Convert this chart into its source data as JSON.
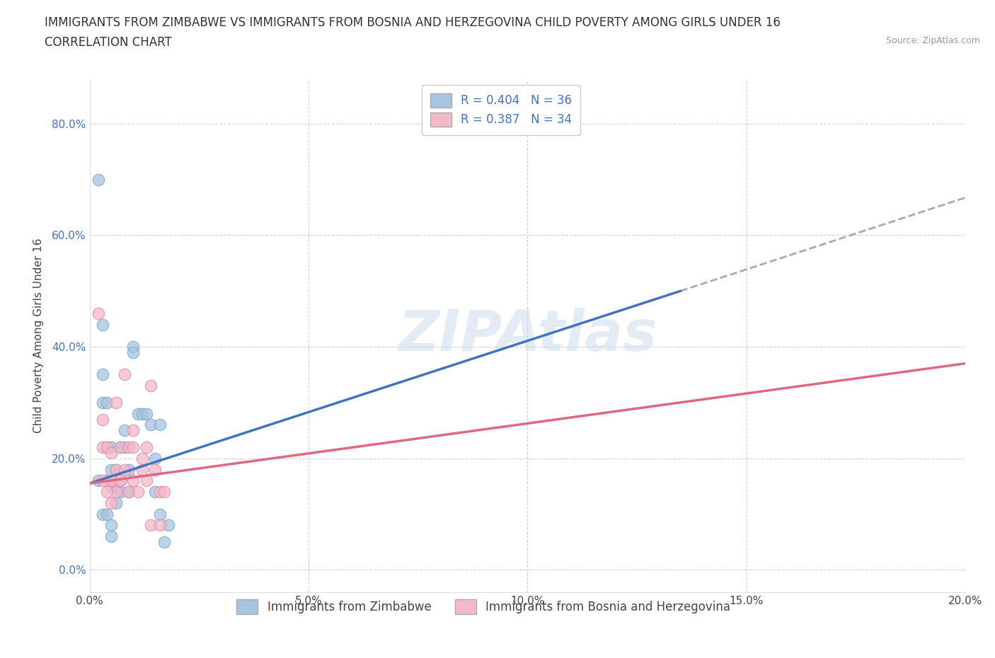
{
  "title_line1": "IMMIGRANTS FROM ZIMBABWE VS IMMIGRANTS FROM BOSNIA AND HERZEGOVINA CHILD POVERTY AMONG GIRLS UNDER 16",
  "title_line2": "CORRELATION CHART",
  "source": "Source: ZipAtlas.com",
  "ylabel": "Child Poverty Among Girls Under 16",
  "xlim": [
    0.0,
    0.2
  ],
  "ylim": [
    -0.04,
    0.88
  ],
  "xticks": [
    0.0,
    0.05,
    0.1,
    0.15,
    0.2
  ],
  "xtick_labels": [
    "0.0%",
    "5.0%",
    "10.0%",
    "15.0%",
    "20.0%"
  ],
  "yticks": [
    0.0,
    0.2,
    0.4,
    0.6,
    0.8
  ],
  "ytick_labels": [
    "0.0%",
    "20.0%",
    "40.0%",
    "60.0%",
    "80.0%"
  ],
  "series_zimbabwe": {
    "label": "Immigrants from Zimbabwe",
    "color": "#a8c4e0",
    "edge_color": "#7aadd0",
    "line_color": "#4472c4",
    "R": 0.404,
    "N": 36,
    "x": [
      0.002,
      0.003,
      0.003,
      0.003,
      0.004,
      0.004,
      0.005,
      0.005,
      0.005,
      0.006,
      0.006,
      0.007,
      0.007,
      0.007,
      0.008,
      0.008,
      0.009,
      0.009,
      0.01,
      0.01,
      0.011,
      0.012,
      0.013,
      0.014,
      0.015,
      0.015,
      0.016,
      0.016,
      0.017,
      0.018,
      0.002,
      0.003,
      0.004,
      0.005,
      0.006,
      0.005
    ],
    "y": [
      0.7,
      0.44,
      0.35,
      0.3,
      0.3,
      0.22,
      0.18,
      0.15,
      0.22,
      0.18,
      0.15,
      0.22,
      0.16,
      0.14,
      0.25,
      0.22,
      0.14,
      0.18,
      0.4,
      0.39,
      0.28,
      0.28,
      0.28,
      0.26,
      0.14,
      0.2,
      0.26,
      0.1,
      0.05,
      0.08,
      0.16,
      0.1,
      0.1,
      0.08,
      0.12,
      0.06
    ],
    "trend_x": [
      0.0,
      0.135
    ],
    "trend_y": [
      0.155,
      0.5
    ]
  },
  "series_bosnia": {
    "label": "Immigrants from Bosnia and Herzegovina",
    "color": "#f4b8c8",
    "edge_color": "#e090a8",
    "line_color": "#e06880",
    "R": 0.387,
    "N": 34,
    "x": [
      0.002,
      0.003,
      0.003,
      0.004,
      0.004,
      0.005,
      0.005,
      0.006,
      0.006,
      0.007,
      0.007,
      0.008,
      0.009,
      0.009,
      0.01,
      0.01,
      0.011,
      0.012,
      0.013,
      0.013,
      0.014,
      0.015,
      0.016,
      0.016,
      0.017,
      0.003,
      0.004,
      0.005,
      0.006,
      0.007,
      0.008,
      0.01,
      0.012,
      0.014
    ],
    "y": [
      0.46,
      0.27,
      0.22,
      0.22,
      0.16,
      0.21,
      0.16,
      0.14,
      0.18,
      0.22,
      0.16,
      0.18,
      0.22,
      0.14,
      0.22,
      0.16,
      0.14,
      0.18,
      0.16,
      0.22,
      0.08,
      0.18,
      0.14,
      0.08,
      0.14,
      0.16,
      0.14,
      0.12,
      0.3,
      0.16,
      0.35,
      0.25,
      0.2,
      0.33
    ],
    "trend_x": [
      0.0,
      0.2
    ],
    "trend_y": [
      0.155,
      0.37
    ]
  },
  "dashed_line": {
    "x": [
      0.135,
      0.205
    ],
    "y": [
      0.5,
      0.68
    ]
  },
  "watermark": "ZIPAtlas",
  "background_color": "#ffffff",
  "grid_color": "#cccccc",
  "title_fontsize": 12,
  "axis_label_fontsize": 11,
  "tick_fontsize": 11,
  "legend_fontsize": 12
}
